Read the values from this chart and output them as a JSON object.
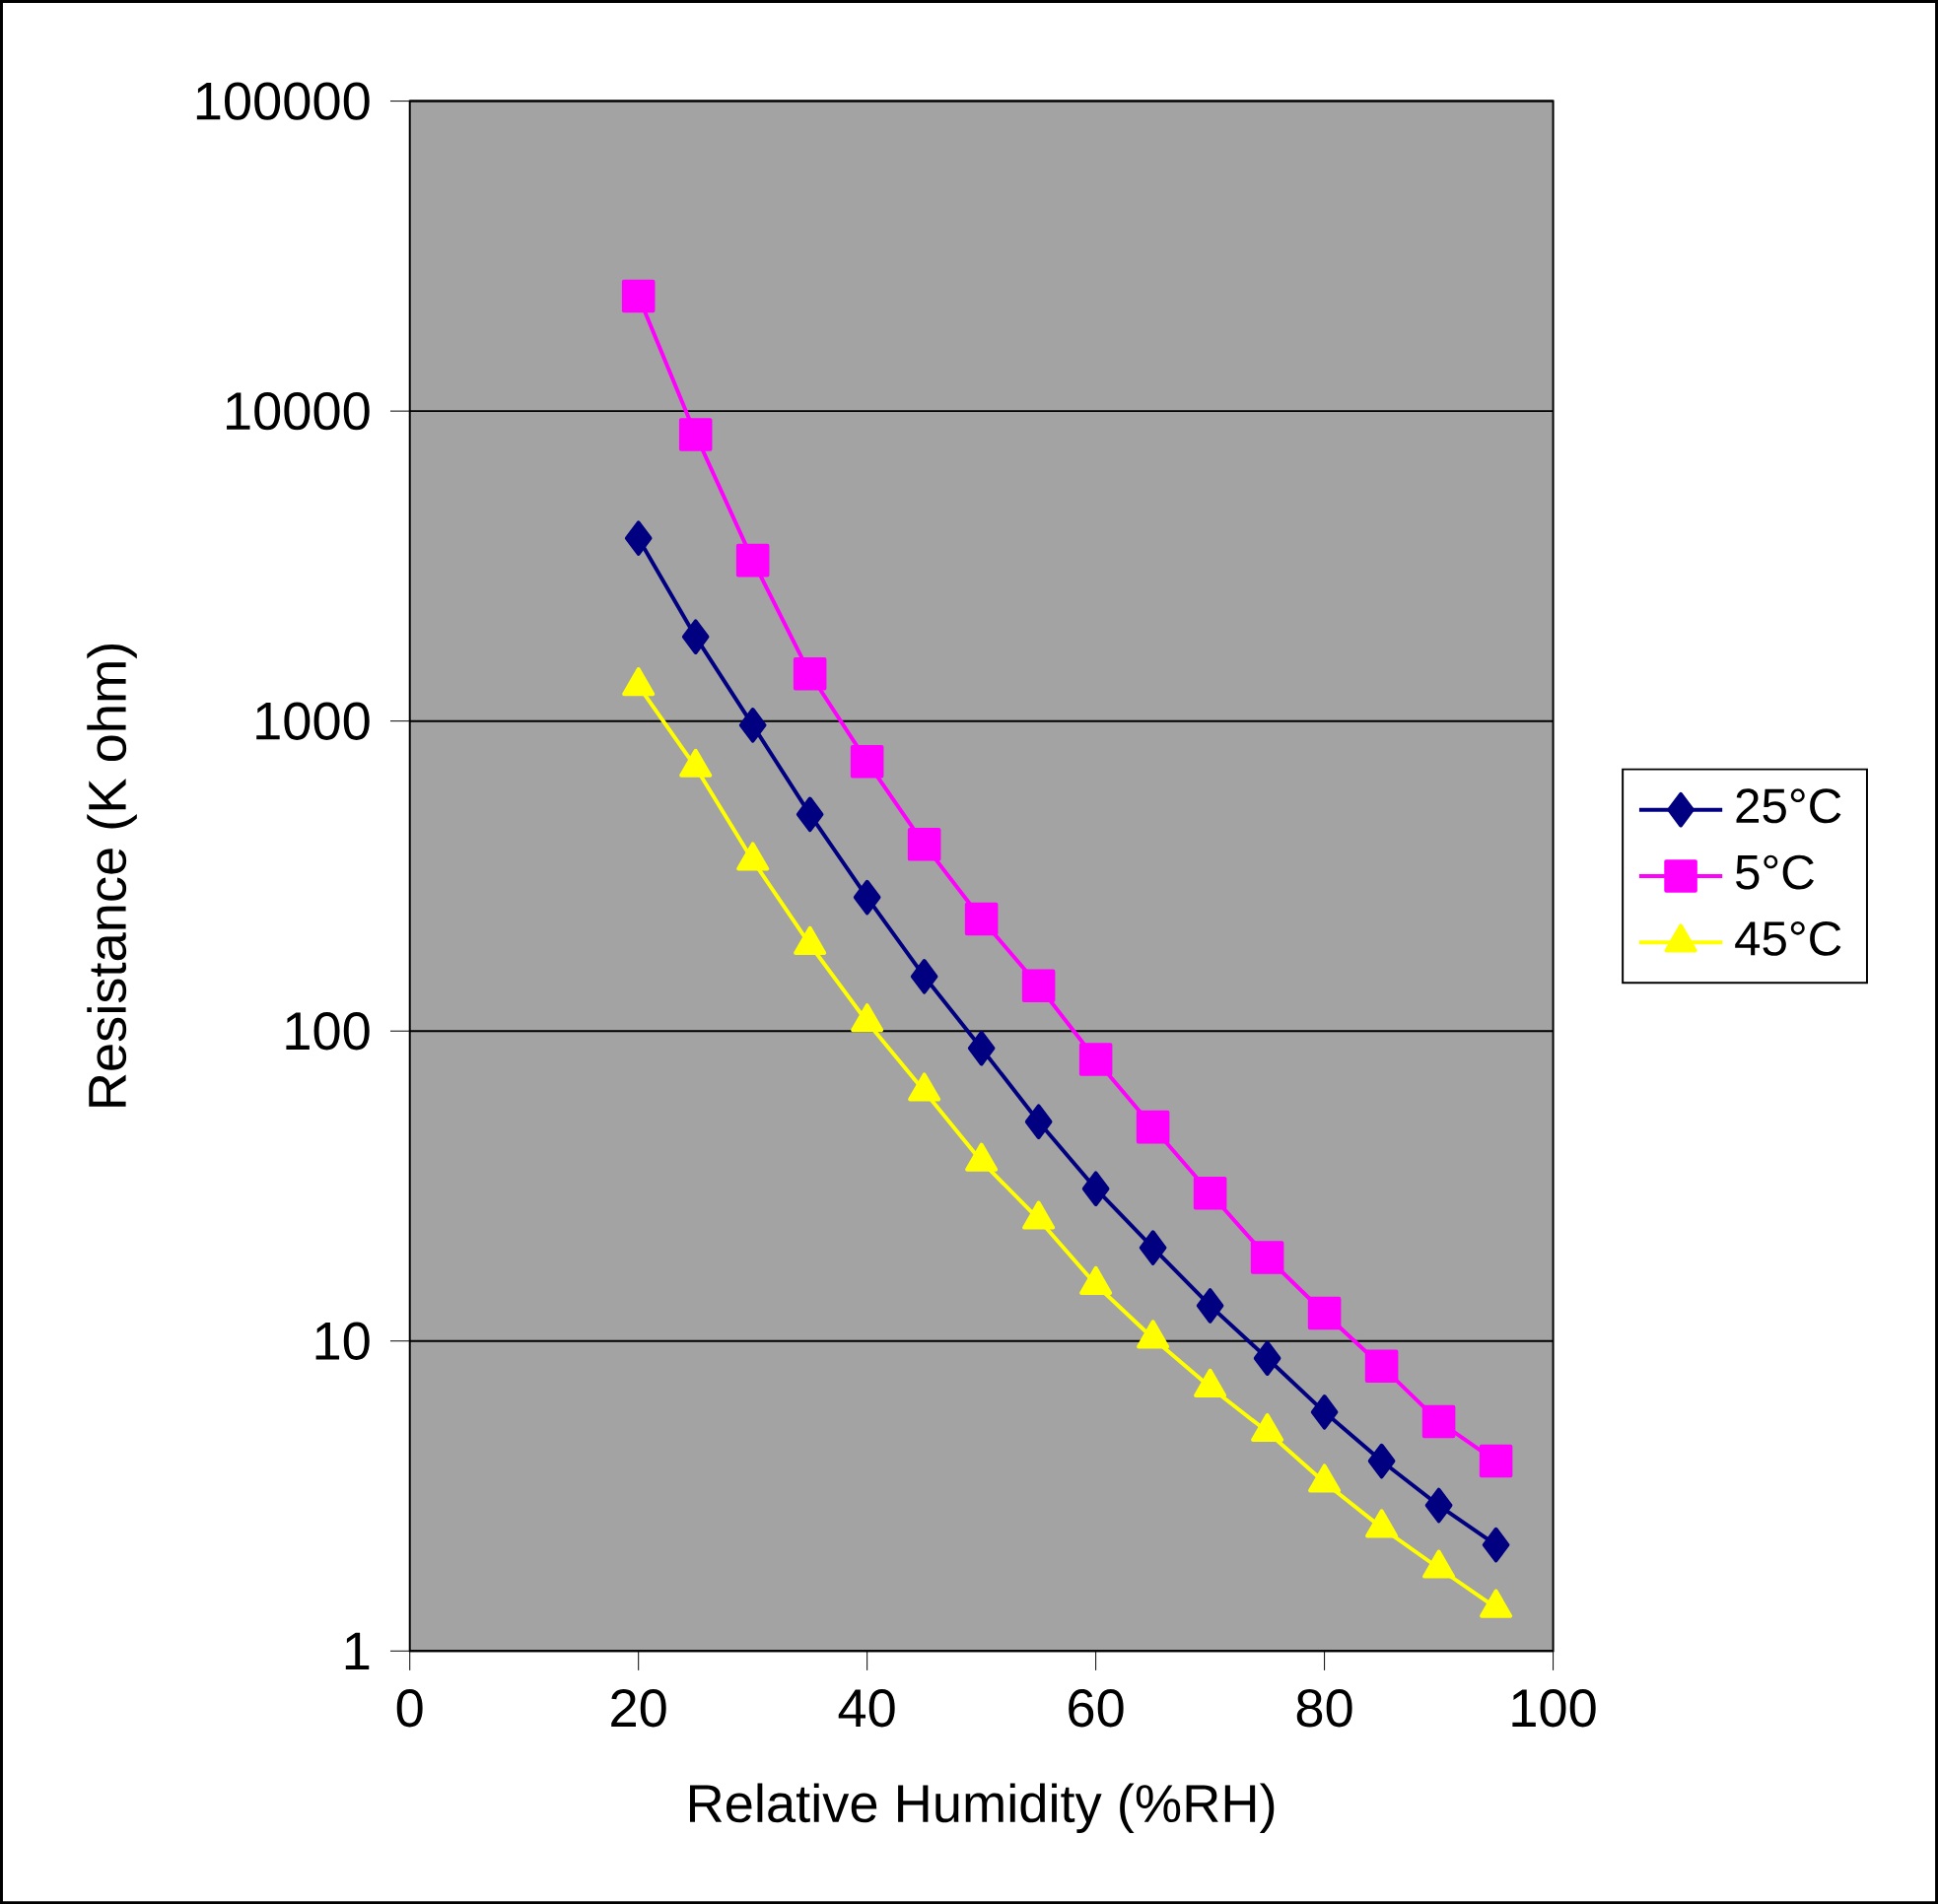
{
  "chart_data": {
    "type": "line",
    "xlabel": "Relative Humidity (%RH)",
    "ylabel": "Resistance (K ohm)",
    "log": "y",
    "grid": "y",
    "legend": "right",
    "xlim": [
      0,
      100
    ],
    "xticks": [
      0,
      20,
      40,
      60,
      80,
      100
    ],
    "ylim": [
      1,
      100000
    ],
    "yticks": [
      1,
      10,
      100,
      1000,
      10000,
      100000
    ],
    "x": [
      20,
      25,
      30,
      35,
      40,
      45,
      50,
      55,
      60,
      65,
      70,
      75,
      80,
      85,
      90,
      95
    ],
    "series": [
      {
        "name": "25°C",
        "color": "#000080",
        "marker": "diamond",
        "values": [
          3890,
          1870,
          970,
          500,
          270,
          150,
          88,
          51,
          31,
          20,
          13,
          8.8,
          5.9,
          4.1,
          2.95,
          2.2
        ]
      },
      {
        "name": "5°C",
        "color": "#ff00ff",
        "marker": "square",
        "values": [
          23500,
          8400,
          3300,
          1420,
          740,
          400,
          230,
          140,
          81,
          49,
          30,
          18.6,
          12.3,
          8.3,
          5.5,
          4.1
        ]
      },
      {
        "name": "45°C",
        "color": "#ffff00",
        "marker": "triangle",
        "values": [
          1300,
          710,
          355,
          190,
          107,
          64,
          38,
          24.7,
          15.2,
          10.2,
          7.1,
          5.1,
          3.5,
          2.5,
          1.85,
          1.38
        ]
      }
    ]
  }
}
